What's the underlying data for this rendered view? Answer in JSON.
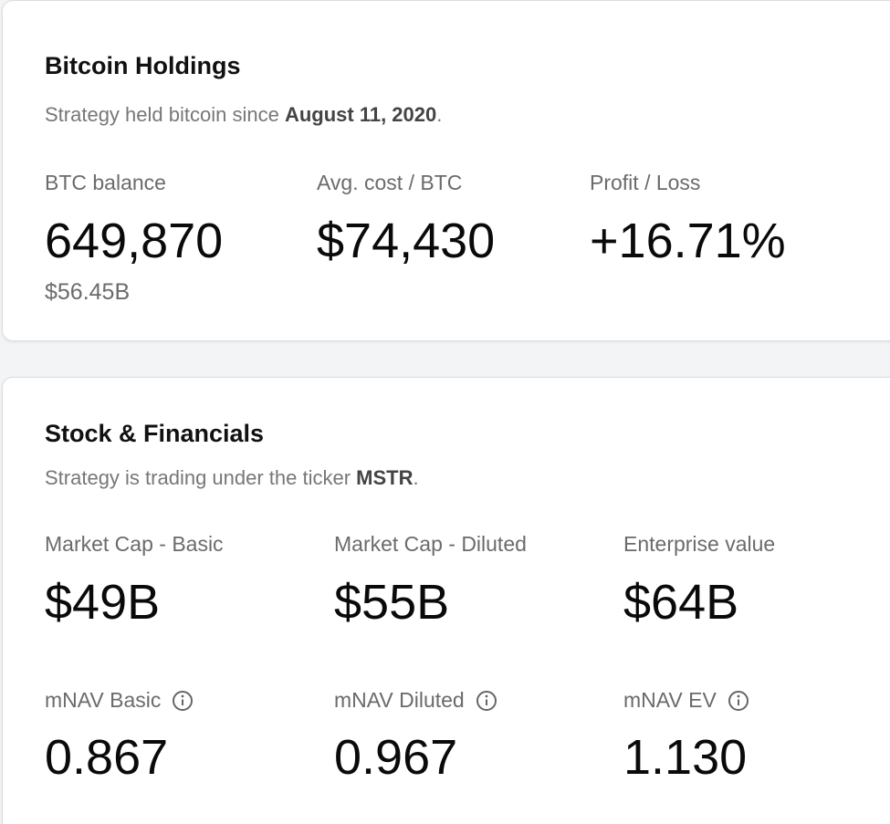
{
  "holdings": {
    "title": "Bitcoin Holdings",
    "subtitle": {
      "text": "Strategy held bitcoin since ",
      "emphasis": "August 11, 2020",
      "end": "."
    },
    "metrics": [
      {
        "label": "BTC balance",
        "value": "649,870",
        "sub": "$56.45B"
      },
      {
        "label": "Avg. cost / BTC",
        "value": "$74,430"
      },
      {
        "label": "Profit / Loss",
        "value": "+16.71%"
      }
    ]
  },
  "financials": {
    "title": "Stock & Financials",
    "subtitle": {
      "text": "Strategy is trading under the ticker ",
      "emphasis": "MSTR",
      "end": "."
    },
    "metrics": [
      {
        "label": "Market Cap - Basic",
        "value": "$49B"
      },
      {
        "label": "Market Cap - Diluted",
        "value": "$55B"
      },
      {
        "label": "Enterprise value",
        "value": "$64B"
      },
      {
        "label": "mNAV Basic",
        "value": "0.867"
      },
      {
        "label": "mNAV Diluted",
        "value": "0.967"
      },
      {
        "label": "mNAV EV",
        "value": "1.130"
      }
    ]
  }
}
